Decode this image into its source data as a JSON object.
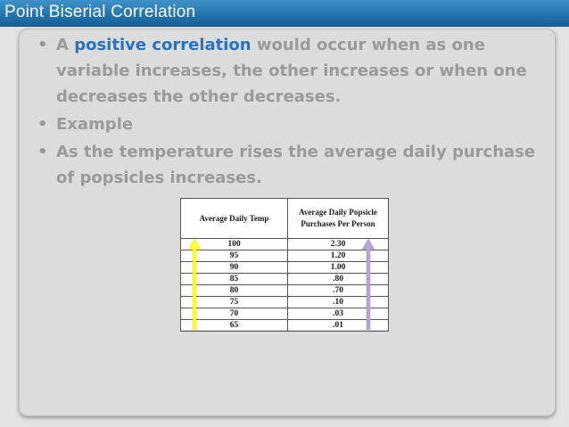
{
  "slide": {
    "title": "Point Biserial Correlation",
    "bullets": {
      "b1_prefix": "A ",
      "b1_highlight": "positive correlation",
      "b1_rest": " would occur when as one variable increases, the other increases or when one decreases the other decreases.",
      "b2": "Example",
      "b3": "As the temperature rises the average daily purchase of popsicles increases."
    },
    "colors": {
      "title_bar": "#2475b1",
      "highlight": "#2474c2",
      "yellow_arrow": "#ffff33",
      "lavender_arrow": "#b7a6d4"
    },
    "arrows": {
      "left": "up-arrow-yellow",
      "right": "up-arrow-lavender"
    }
  },
  "table": {
    "headers": [
      "Average Daily Temp",
      "Average Daily Popsicle Purchases Per Person"
    ],
    "rows": [
      [
        "100",
        "2.30"
      ],
      [
        "95",
        "1.20"
      ],
      [
        "90",
        "1.00"
      ],
      [
        "85",
        ".80"
      ],
      [
        "80",
        ".70"
      ],
      [
        "75",
        ".10"
      ],
      [
        "70",
        ".03"
      ],
      [
        "65",
        ".01"
      ]
    ]
  }
}
